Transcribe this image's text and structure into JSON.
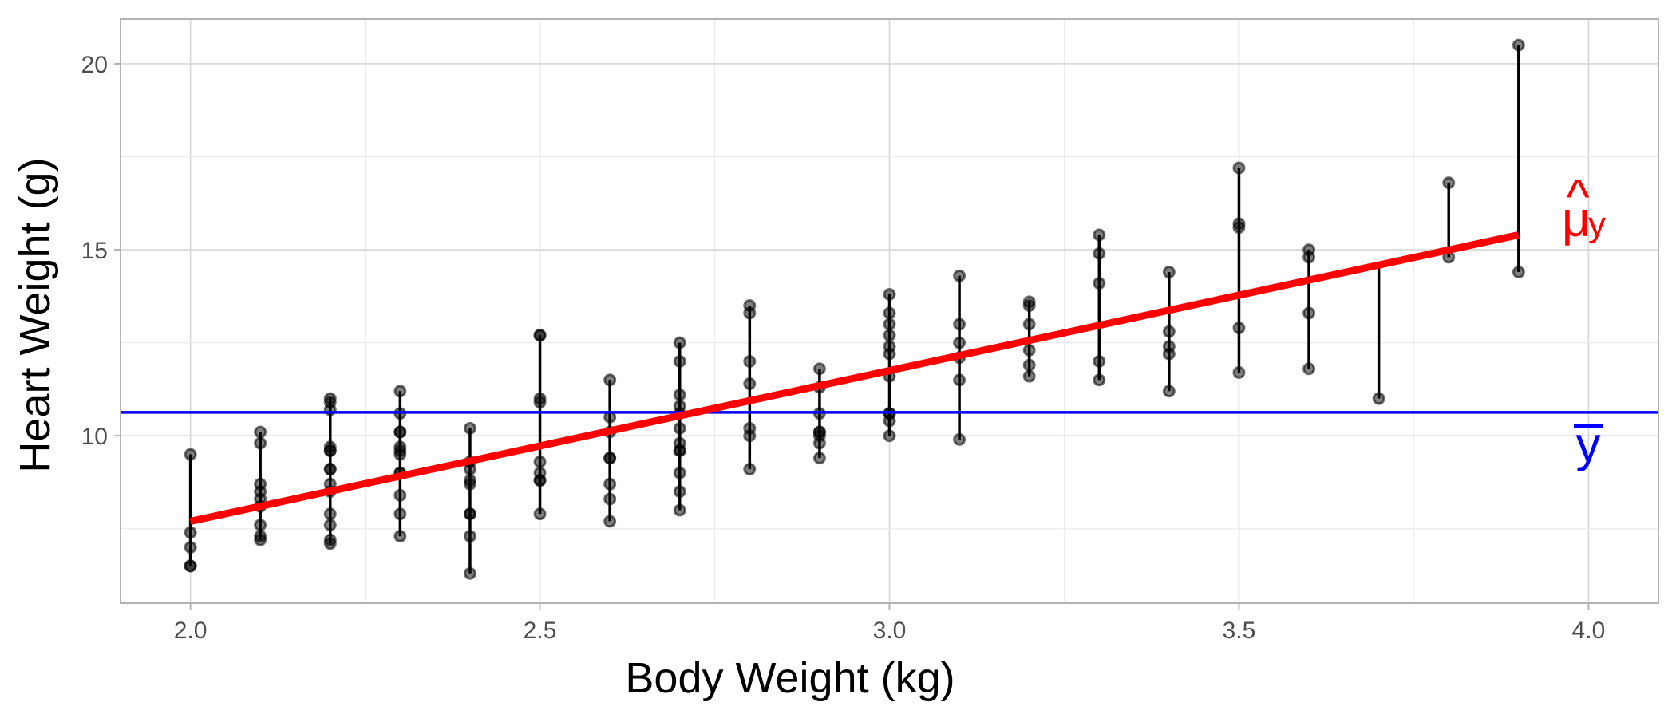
{
  "chart_data": {
    "type": "scatter",
    "title": "",
    "xlabel": "Body Weight (kg)",
    "ylabel": "Heart Weight (g)",
    "xlim": [
      1.9,
      4.1
    ],
    "ylim": [
      5.5,
      21.2
    ],
    "x_ticks": [
      2.0,
      2.5,
      3.0,
      3.5,
      4.0
    ],
    "x_tick_labels": [
      "2.0",
      "2.5",
      "3.0",
      "3.5",
      "4.0"
    ],
    "y_ticks": [
      10,
      15,
      20
    ],
    "y_tick_labels": [
      "10",
      "15",
      "20"
    ],
    "grid": true,
    "legend": "none",
    "points": [
      [
        2.0,
        9.5
      ],
      [
        2.0,
        7.4
      ],
      [
        2.0,
        7.0
      ],
      [
        2.0,
        6.5
      ],
      [
        2.0,
        6.5
      ],
      [
        2.1,
        10.1
      ],
      [
        2.1,
        9.8
      ],
      [
        2.1,
        8.7
      ],
      [
        2.1,
        8.5
      ],
      [
        2.1,
        8.3
      ],
      [
        2.1,
        8.1
      ],
      [
        2.1,
        7.6
      ],
      [
        2.1,
        7.3
      ],
      [
        2.1,
        7.2
      ],
      [
        2.2,
        11.0
      ],
      [
        2.2,
        10.9
      ],
      [
        2.2,
        10.7
      ],
      [
        2.2,
        9.7
      ],
      [
        2.2,
        9.6
      ],
      [
        2.2,
        9.6
      ],
      [
        2.2,
        9.1
      ],
      [
        2.2,
        9.1
      ],
      [
        2.2,
        8.7
      ],
      [
        2.2,
        8.5
      ],
      [
        2.2,
        7.9
      ],
      [
        2.2,
        7.6
      ],
      [
        2.2,
        7.2
      ],
      [
        2.2,
        7.1
      ],
      [
        2.3,
        11.2
      ],
      [
        2.3,
        10.6
      ],
      [
        2.3,
        10.1
      ],
      [
        2.3,
        10.1
      ],
      [
        2.3,
        9.7
      ],
      [
        2.3,
        9.6
      ],
      [
        2.3,
        9.5
      ],
      [
        2.3,
        9.0
      ],
      [
        2.3,
        9.0
      ],
      [
        2.3,
        8.4
      ],
      [
        2.3,
        7.9
      ],
      [
        2.3,
        7.3
      ],
      [
        2.4,
        10.2
      ],
      [
        2.4,
        9.3
      ],
      [
        2.4,
        9.1
      ],
      [
        2.4,
        8.8
      ],
      [
        2.4,
        8.7
      ],
      [
        2.4,
        7.9
      ],
      [
        2.4,
        7.9
      ],
      [
        2.4,
        7.3
      ],
      [
        2.4,
        6.3
      ],
      [
        2.5,
        12.7
      ],
      [
        2.5,
        12.7
      ],
      [
        2.5,
        11.0
      ],
      [
        2.5,
        10.9
      ],
      [
        2.5,
        9.3
      ],
      [
        2.5,
        9.0
      ],
      [
        2.5,
        8.8
      ],
      [
        2.5,
        8.8
      ],
      [
        2.5,
        7.9
      ],
      [
        2.6,
        11.5
      ],
      [
        2.6,
        10.5
      ],
      [
        2.6,
        10.1
      ],
      [
        2.6,
        9.4
      ],
      [
        2.6,
        9.4
      ],
      [
        2.6,
        8.7
      ],
      [
        2.6,
        8.3
      ],
      [
        2.6,
        7.7
      ],
      [
        2.7,
        12.5
      ],
      [
        2.7,
        12.0
      ],
      [
        2.7,
        11.1
      ],
      [
        2.7,
        10.8
      ],
      [
        2.7,
        10.6
      ],
      [
        2.7,
        10.2
      ],
      [
        2.7,
        9.8
      ],
      [
        2.7,
        9.6
      ],
      [
        2.7,
        9.6
      ],
      [
        2.7,
        9.0
      ],
      [
        2.7,
        8.5
      ],
      [
        2.7,
        8.0
      ],
      [
        2.8,
        13.5
      ],
      [
        2.8,
        13.3
      ],
      [
        2.8,
        12.0
      ],
      [
        2.8,
        11.4
      ],
      [
        2.8,
        10.2
      ],
      [
        2.8,
        10.0
      ],
      [
        2.8,
        9.1
      ],
      [
        2.9,
        11.8
      ],
      [
        2.9,
        11.3
      ],
      [
        2.9,
        10.6
      ],
      [
        2.9,
        10.1
      ],
      [
        2.9,
        10.1
      ],
      [
        2.9,
        10.0
      ],
      [
        2.9,
        9.8
      ],
      [
        2.9,
        9.4
      ],
      [
        3.0,
        13.8
      ],
      [
        3.0,
        13.3
      ],
      [
        3.0,
        13.0
      ],
      [
        3.0,
        12.7
      ],
      [
        3.0,
        12.4
      ],
      [
        3.0,
        12.2
      ],
      [
        3.0,
        11.6
      ],
      [
        3.0,
        10.6
      ],
      [
        3.0,
        10.6
      ],
      [
        3.0,
        10.4
      ],
      [
        3.0,
        10.0
      ],
      [
        3.1,
        14.3
      ],
      [
        3.1,
        13.0
      ],
      [
        3.1,
        12.5
      ],
      [
        3.1,
        12.1
      ],
      [
        3.1,
        11.5
      ],
      [
        3.1,
        9.9
      ],
      [
        3.2,
        13.6
      ],
      [
        3.2,
        13.5
      ],
      [
        3.2,
        13.0
      ],
      [
        3.2,
        12.3
      ],
      [
        3.2,
        11.9
      ],
      [
        3.2,
        11.6
      ],
      [
        3.3,
        15.4
      ],
      [
        3.3,
        14.9
      ],
      [
        3.3,
        14.1
      ],
      [
        3.3,
        12.0
      ],
      [
        3.3,
        11.5
      ],
      [
        3.4,
        14.4
      ],
      [
        3.4,
        12.8
      ],
      [
        3.4,
        12.4
      ],
      [
        3.4,
        12.2
      ],
      [
        3.4,
        11.2
      ],
      [
        3.5,
        17.2
      ],
      [
        3.5,
        15.7
      ],
      [
        3.5,
        15.6
      ],
      [
        3.5,
        12.9
      ],
      [
        3.5,
        11.7
      ],
      [
        3.6,
        15.0
      ],
      [
        3.6,
        14.8
      ],
      [
        3.6,
        13.3
      ],
      [
        3.6,
        11.8
      ],
      [
        3.7,
        11.0
      ],
      [
        3.8,
        16.8
      ],
      [
        3.8,
        14.8
      ],
      [
        3.9,
        20.5
      ],
      [
        3.9,
        14.4
      ]
    ],
    "regression_line": {
      "x": [
        2.0,
        3.9
      ],
      "y": [
        7.7,
        15.4
      ],
      "color": "#ff0000"
    },
    "mean_line": {
      "y": 10.63,
      "color": "#0000ff"
    },
    "residual_segments": [
      {
        "x": 2.0,
        "y_low": 6.5,
        "y_high": 9.5
      },
      {
        "x": 2.1,
        "y_low": 7.2,
        "y_high": 10.1
      },
      {
        "x": 2.2,
        "y_low": 7.1,
        "y_high": 11.0
      },
      {
        "x": 2.3,
        "y_low": 7.3,
        "y_high": 11.2
      },
      {
        "x": 2.4,
        "y_low": 6.3,
        "y_high": 10.2
      },
      {
        "x": 2.5,
        "y_low": 7.9,
        "y_high": 12.7
      },
      {
        "x": 2.6,
        "y_low": 7.7,
        "y_high": 11.5
      },
      {
        "x": 2.7,
        "y_low": 8.0,
        "y_high": 12.5
      },
      {
        "x": 2.8,
        "y_low": 9.1,
        "y_high": 13.5
      },
      {
        "x": 2.9,
        "y_low": 9.4,
        "y_high": 11.8
      },
      {
        "x": 3.0,
        "y_low": 10.0,
        "y_high": 13.8
      },
      {
        "x": 3.1,
        "y_low": 9.9,
        "y_high": 14.3
      },
      {
        "x": 3.2,
        "y_low": 11.6,
        "y_high": 13.6
      },
      {
        "x": 3.3,
        "y_low": 11.5,
        "y_high": 15.4
      },
      {
        "x": 3.4,
        "y_low": 11.2,
        "y_high": 14.4
      },
      {
        "x": 3.5,
        "y_low": 11.7,
        "y_high": 17.2
      },
      {
        "x": 3.6,
        "y_low": 11.8,
        "y_high": 15.0
      },
      {
        "x": 3.7,
        "y_low": 11.0,
        "y_high": 14.6
      },
      {
        "x": 3.8,
        "y_low": 14.8,
        "y_high": 16.8
      },
      {
        "x": 3.9,
        "y_low": 14.4,
        "y_high": 20.5
      }
    ],
    "annotations": [
      {
        "id": "mu-hat",
        "base": "μ",
        "hat": "^",
        "subscript": "y",
        "color": "#ff0000"
      },
      {
        "id": "y-bar",
        "text": "y",
        "color": "#0000ff"
      }
    ]
  }
}
